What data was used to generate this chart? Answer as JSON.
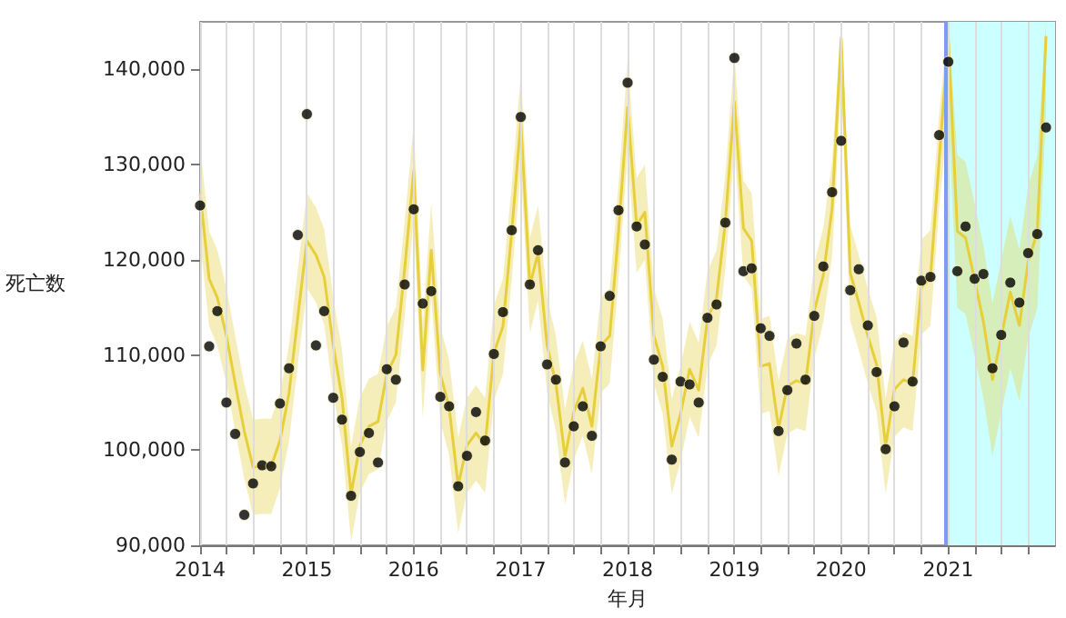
{
  "chart_data": {
    "type": "scatter",
    "xlabel": "年月",
    "ylabel": "死亡数",
    "grid": "x",
    "xlim": [
      "2014-01",
      "2022-01"
    ],
    "xticks": [
      {
        "value": "2014",
        "label": "2014"
      },
      {
        "value": "2014-04",
        "label": null
      },
      {
        "value": "2014-07",
        "label": null
      },
      {
        "value": "2014-10",
        "label": null
      },
      {
        "value": "2015",
        "label": "2015"
      },
      {
        "value": "2015-04",
        "label": null
      },
      {
        "value": "2015-07",
        "label": null
      },
      {
        "value": "2015-10",
        "label": null
      },
      {
        "value": "2016",
        "label": "2016"
      },
      {
        "value": "2016-04",
        "label": null
      },
      {
        "value": "2016-07",
        "label": null
      },
      {
        "value": "2016-10",
        "label": null
      },
      {
        "value": "2017",
        "label": "2017"
      },
      {
        "value": "2017-04",
        "label": null
      },
      {
        "value": "2017-07",
        "label": null
      },
      {
        "value": "2017-10",
        "label": null
      },
      {
        "value": "2018",
        "label": "2018"
      },
      {
        "value": "2018-04",
        "label": null
      },
      {
        "value": "2018-07",
        "label": null
      },
      {
        "value": "2018-10",
        "label": null
      },
      {
        "value": "2019",
        "label": "2019"
      },
      {
        "value": "2019-04",
        "label": null
      },
      {
        "value": "2019-07",
        "label": null
      },
      {
        "value": "2019-10",
        "label": null
      },
      {
        "value": "2020",
        "label": "2020"
      },
      {
        "value": "2020-04",
        "label": null
      },
      {
        "value": "2020-07",
        "label": null
      },
      {
        "value": "2020-10",
        "label": null
      },
      {
        "value": "2021",
        "label": "2021"
      },
      {
        "value": "2021-04",
        "label": null
      },
      {
        "value": "2021-07",
        "label": null
      },
      {
        "value": "2021-10",
        "label": null
      }
    ],
    "ylim": [
      90000,
      145000
    ],
    "yticks": [
      {
        "value": 90000,
        "label": "90,000"
      },
      {
        "value": 100000,
        "label": "100,000"
      },
      {
        "value": 110000,
        "label": "110,000"
      },
      {
        "value": 120000,
        "label": "120,000"
      },
      {
        "value": 130000,
        "label": "130,000"
      },
      {
        "value": 140000,
        "label": "140,000"
      }
    ],
    "x": [
      "2014-01",
      "2014-02",
      "2014-03",
      "2014-04",
      "2014-05",
      "2014-06",
      "2014-07",
      "2014-08",
      "2014-09",
      "2014-10",
      "2014-11",
      "2014-12",
      "2015-01",
      "2015-02",
      "2015-03",
      "2015-04",
      "2015-05",
      "2015-06",
      "2015-07",
      "2015-08",
      "2015-09",
      "2015-10",
      "2015-11",
      "2015-12",
      "2016-01",
      "2016-02",
      "2016-03",
      "2016-04",
      "2016-05",
      "2016-06",
      "2016-07",
      "2016-08",
      "2016-09",
      "2016-10",
      "2016-11",
      "2016-12",
      "2017-01",
      "2017-02",
      "2017-03",
      "2017-04",
      "2017-05",
      "2017-06",
      "2017-07",
      "2017-08",
      "2017-09",
      "2017-10",
      "2017-11",
      "2017-12",
      "2018-01",
      "2018-02",
      "2018-03",
      "2018-04",
      "2018-05",
      "2018-06",
      "2018-07",
      "2018-08",
      "2018-09",
      "2018-10",
      "2018-11",
      "2018-12",
      "2019-01",
      "2019-02",
      "2019-03",
      "2019-04",
      "2019-05",
      "2019-06",
      "2019-07",
      "2019-08",
      "2019-09",
      "2019-10",
      "2019-11",
      "2019-12",
      "2020-01",
      "2020-02",
      "2020-03",
      "2020-04",
      "2020-05",
      "2020-06",
      "2020-07",
      "2020-08",
      "2020-09",
      "2020-10",
      "2020-11",
      "2020-12",
      "2021-01",
      "2021-02",
      "2021-03",
      "2021-04",
      "2021-05",
      "2021-06",
      "2021-07",
      "2021-08",
      "2021-09",
      "2021-10",
      "2021-11",
      "2021-12"
    ],
    "series": [
      {
        "type": "line",
        "color": "#e6cf3a",
        "marker": "none",
        "values": [
          127000,
          118000,
          116000,
          112000,
          107000,
          102000,
          98200,
          98300,
          98300,
          101000,
          106000,
          114000,
          122000,
          120500,
          118200,
          111000,
          105500,
          95400,
          100500,
          102500,
          103000,
          108000,
          110000,
          119000,
          129300,
          108400,
          121000,
          108000,
          104500,
          96300,
          100500,
          101800,
          100500,
          110200,
          113000,
          122900,
          134500,
          117300,
          120700,
          111000,
          107000,
          99300,
          104000,
          106500,
          102500,
          111000,
          112000,
          122900,
          136000,
          123600,
          125000,
          112000,
          108800,
          100400,
          103800,
          108500,
          106300,
          113800,
          116000,
          123900,
          136600,
          123300,
          122000,
          108800,
          109100,
          102300,
          106700,
          107300,
          107000,
          114600,
          118400,
          125400,
          143300,
          118600,
          115500,
          112000,
          109000,
          100400,
          106400,
          107400,
          107000,
          117100,
          118100,
          130500,
          143300,
          123000,
          122300,
          117900,
          113500,
          107400,
          111900,
          116600,
          113100,
          119800,
          122900,
          143500
        ],
        "lower": [
          122000,
          113000,
          111000,
          107000,
          102000,
          97000,
          93200,
          93300,
          93300,
          96000,
          101000,
          109000,
          117000,
          115500,
          113200,
          106000,
          100500,
          90400,
          95500,
          97500,
          98000,
          103000,
          105000,
          114000,
          124300,
          103400,
          116000,
          103000,
          99500,
          91300,
          95500,
          96800,
          95500,
          105200,
          108000,
          117900,
          129500,
          112300,
          115700,
          106000,
          102000,
          94300,
          99000,
          101500,
          97500,
          106000,
          107000,
          117900,
          131000,
          118600,
          120000,
          107000,
          103800,
          95400,
          98800,
          103500,
          101300,
          108800,
          111000,
          118900,
          131600,
          118300,
          117000,
          103800,
          104100,
          97300,
          101700,
          102300,
          102000,
          109600,
          113400,
          120400,
          138300,
          113600,
          110500,
          107000,
          104000,
          95400,
          101400,
          102400,
          102000,
          112100,
          113100,
          125500,
          135300,
          115000,
          114300,
          109900,
          105500,
          99400,
          103900,
          108600,
          105100,
          111800,
          114900,
          135500
        ],
        "upper": [
          132000,
          123000,
          121000,
          117000,
          112000,
          107000,
          103200,
          103300,
          103300,
          106000,
          111000,
          119000,
          127000,
          125500,
          123200,
          116000,
          110500,
          100400,
          105500,
          107500,
          108000,
          113000,
          115000,
          124000,
          134300,
          113400,
          126000,
          113000,
          109500,
          101300,
          105500,
          106800,
          105500,
          115200,
          118000,
          127900,
          139500,
          122300,
          125700,
          116000,
          112000,
          104300,
          109000,
          111500,
          107500,
          116000,
          117000,
          127900,
          141000,
          128600,
          130000,
          117000,
          113800,
          105400,
          108800,
          113500,
          111300,
          118800,
          121000,
          128900,
          141600,
          128300,
          127000,
          113800,
          114100,
          107300,
          111700,
          112300,
          112000,
          119600,
          123400,
          130400,
          145000,
          123600,
          120500,
          117000,
          114000,
          105400,
          111400,
          112400,
          112000,
          122100,
          123100,
          135500,
          145000,
          131000,
          130300,
          125900,
          121500,
          115400,
          119900,
          124600,
          121100,
          127800,
          130900,
          145000
        ]
      },
      {
        "color": "#000000",
        "marker": "circle",
        "values": [
          125700,
          110900,
          114600,
          105000,
          101700,
          93200,
          96500,
          98400,
          98300,
          104900,
          108600,
          122600,
          135300,
          111000,
          114600,
          105500,
          103200,
          95200,
          99800,
          101800,
          98700,
          108500,
          107400,
          117400,
          125300,
          115400,
          116700,
          105600,
          104600,
          96200,
          99400,
          104000,
          101000,
          110100,
          114500,
          123100,
          135000,
          117400,
          121000,
          109000,
          107400,
          98700,
          102500,
          104600,
          101500,
          110900,
          116200,
          125200,
          138600,
          123500,
          121600,
          109500,
          107700,
          99000,
          107200,
          106900,
          105000,
          113900,
          115300,
          123900,
          141200,
          118800,
          119100,
          112800,
          112000,
          102000,
          106300,
          111200,
          107400,
          114100,
          119300,
          127100,
          132500,
          116800,
          119000,
          113100,
          108200,
          100100,
          104600,
          111300,
          107200,
          117800,
          118200,
          133100,
          140800,
          118800,
          123500,
          118000,
          118500,
          108600,
          112100,
          117600,
          115500,
          120700,
          122700,
          133900
        ]
      }
    ],
    "ref_lines": [
      {
        "axis": "x",
        "value": "2020-12-20",
        "color": "#7b9ff0"
      }
    ],
    "bands": [
      {
        "axis": "x",
        "from": "2021-01",
        "to": "2022-01",
        "color": "#ccffff"
      }
    ]
  }
}
